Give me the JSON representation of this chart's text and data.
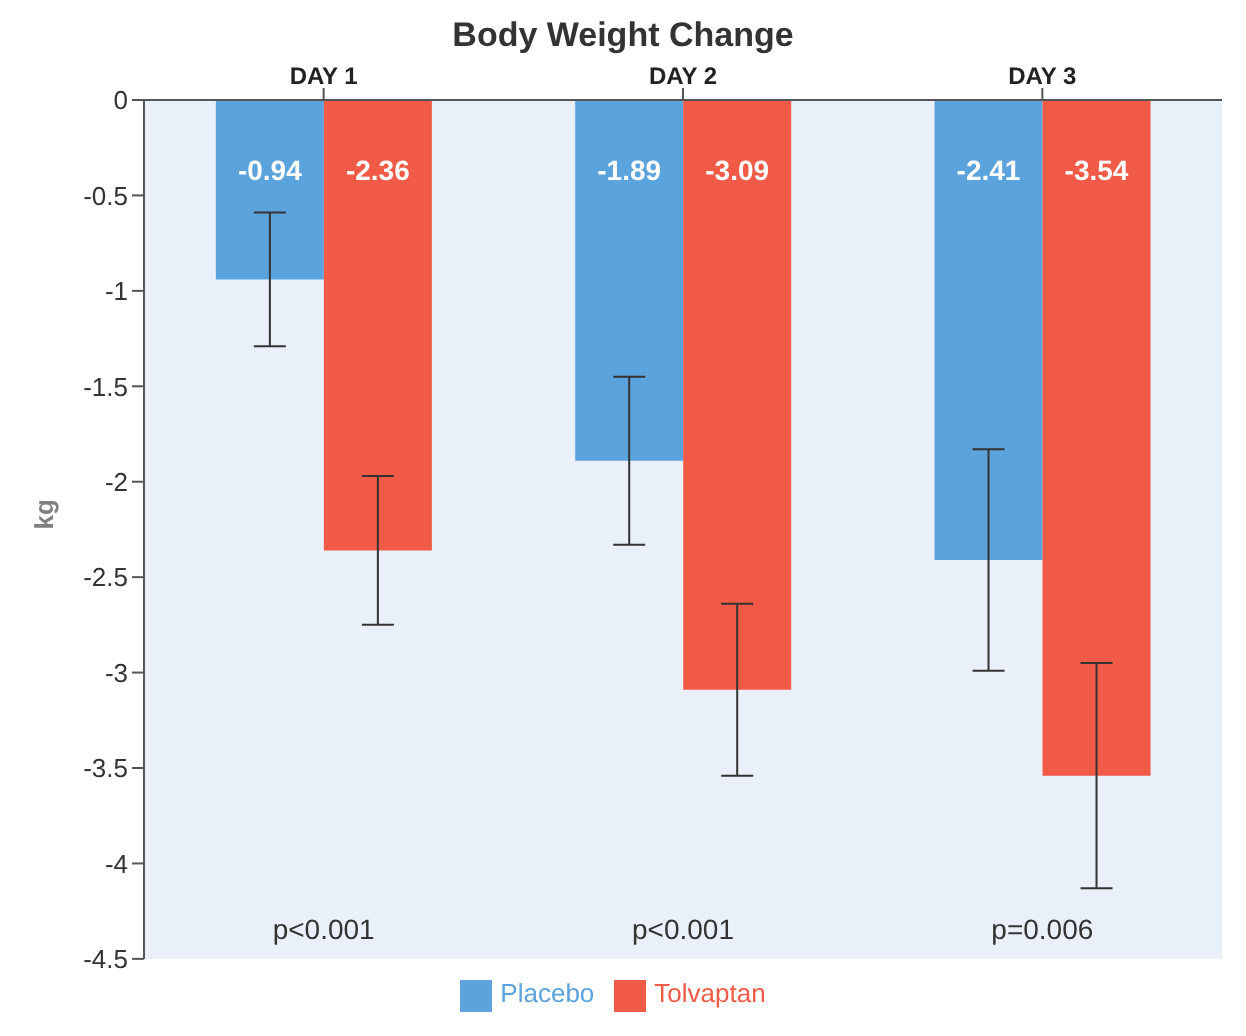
{
  "chart_data": {
    "type": "bar",
    "title": "Body Weight Change",
    "ylabel": "kg",
    "categories": [
      "DAY 1",
      "DAY 2",
      "DAY 3"
    ],
    "series": [
      {
        "name": "Placebo",
        "color": "#5ba3dc",
        "values": [
          -0.94,
          -1.89,
          -2.41
        ],
        "errors": [
          0.35,
          0.44,
          0.58
        ]
      },
      {
        "name": "Tolvaptan",
        "color": "#f05a46",
        "values": [
          -2.36,
          -3.09,
          -3.54
        ],
        "errors": [
          0.39,
          0.45,
          0.59
        ]
      }
    ],
    "ylim": [
      -4.5,
      0
    ],
    "yticks": [
      0,
      -0.5,
      -1,
      -1.5,
      -2,
      -2.5,
      -3,
      -3.5,
      -4,
      -4.5
    ],
    "data_labels": true,
    "legend": "bottom",
    "annotations": [
      "p<0.001",
      "p<0.001",
      "p=0.006"
    ]
  }
}
